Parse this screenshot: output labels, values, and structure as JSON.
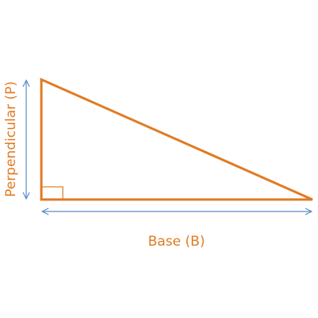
{
  "diagram": {
    "base_label": "Base (B)",
    "perpendicular_label": "Perpendicular (P)"
  },
  "colors": {
    "triangle": "#e07b24",
    "arrow": "#5b8ccc",
    "label": "#e07b24"
  }
}
